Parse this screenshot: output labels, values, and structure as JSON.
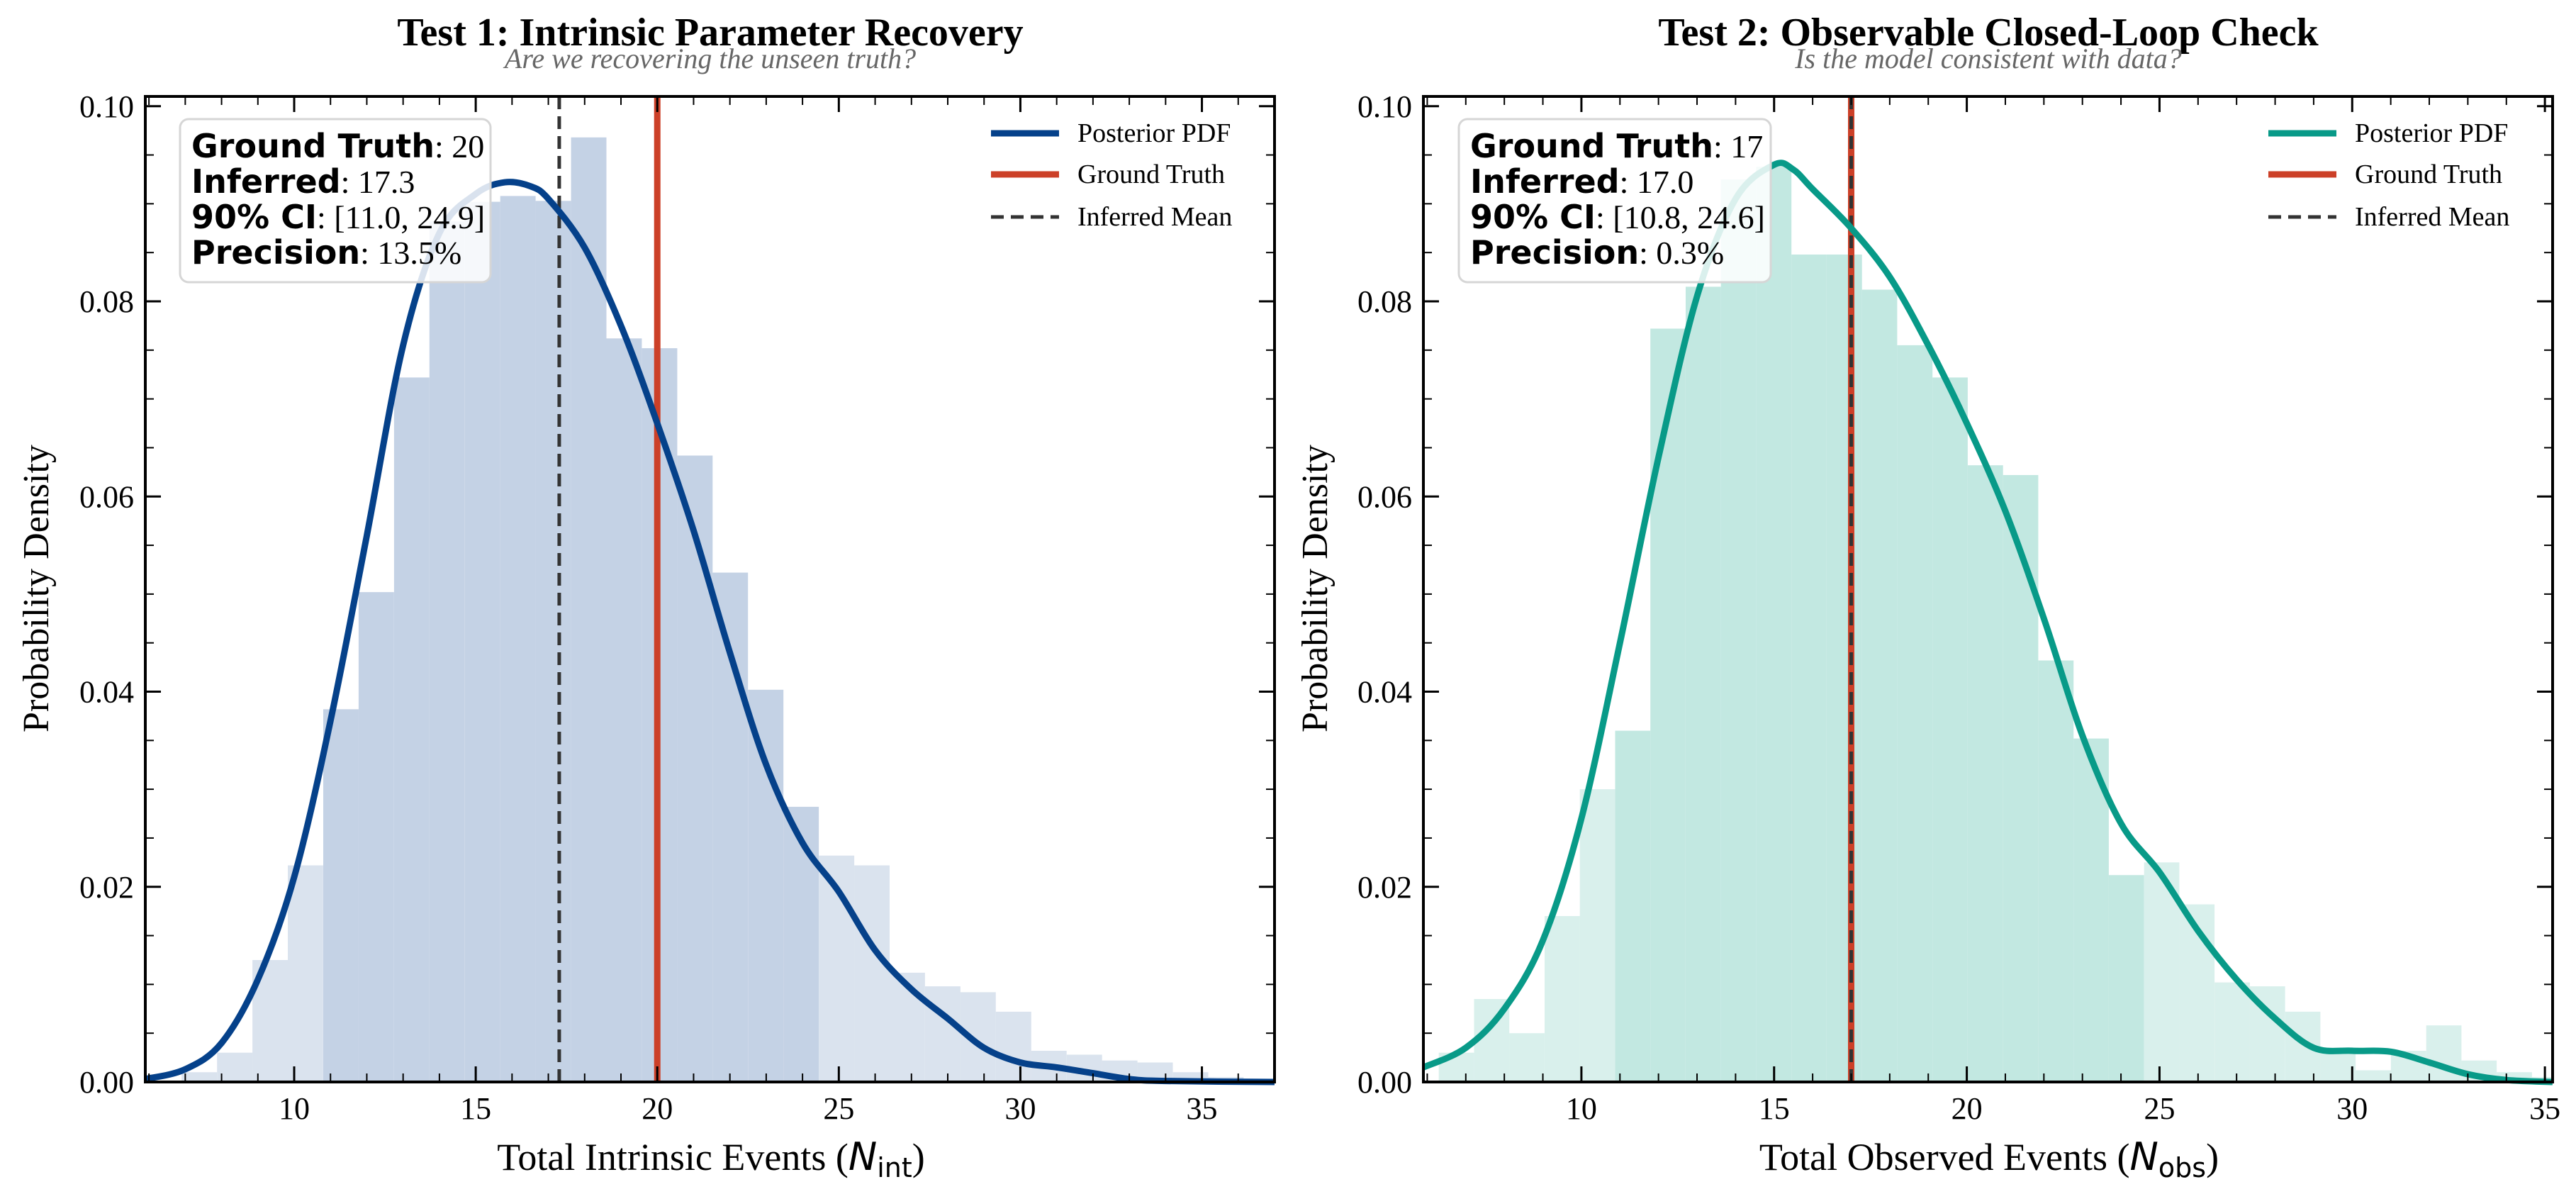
{
  "chart_data": [
    {
      "type": "histogram",
      "title": "Test 1: Intrinsic Parameter Recovery",
      "subtitle": "Are we recovering the unseen truth?",
      "xlabel_main": "Total Intrinsic Events (",
      "xlabel_sym": "N",
      "xlabel_sub": "int",
      "xlabel_close": ")",
      "ylabel": "Probability Density",
      "xlim": [
        5.9,
        37
      ],
      "ylim": [
        0,
        0.101
      ],
      "xticks": [
        10,
        15,
        20,
        25,
        30,
        35
      ],
      "xtick_labels": [
        "10",
        "15",
        "20",
        "25",
        "30",
        "35"
      ],
      "yticks": [
        0,
        0.02,
        0.04,
        0.06,
        0.08,
        0.1
      ],
      "ytick_labels": [
        "0.00",
        "0.02",
        "0.04",
        "0.06",
        "0.08",
        "0.10"
      ],
      "colors": {
        "pdf": "#05418a",
        "hist": "#b5c7de",
        "truth": "#cc4028",
        "mean": "#333333"
      },
      "histogram": {
        "bin_start": 6.9,
        "bin_width": 0.975,
        "heights": [
          0.001,
          0.003,
          0.0125,
          0.0222,
          0.0382,
          0.0502,
          0.0722,
          0.0882,
          0.0902,
          0.0908,
          0.0903,
          0.0968,
          0.0762,
          0.0752,
          0.0642,
          0.0522,
          0.0402,
          0.0282,
          0.0232,
          0.0222,
          0.0112,
          0.0098,
          0.0092,
          0.0072,
          0.0032,
          0.0028,
          0.0022,
          0.002,
          0.001,
          0.0005
        ],
        "ci_range": [
          11.0,
          24.9
        ]
      },
      "pdf": {
        "x": [
          5.9,
          7,
          8,
          9,
          10,
          11,
          12,
          13,
          14,
          15,
          15.8,
          16.5,
          17,
          18,
          19,
          20,
          21,
          22,
          23,
          24,
          25,
          26,
          27,
          28,
          29,
          30,
          31,
          32,
          33,
          34,
          37
        ],
        "y": [
          0.0003,
          0.0013,
          0.004,
          0.0105,
          0.021,
          0.037,
          0.056,
          0.0755,
          0.087,
          0.091,
          0.0922,
          0.0918,
          0.0905,
          0.0855,
          0.0775,
          0.0675,
          0.0565,
          0.044,
          0.0325,
          0.0245,
          0.0195,
          0.0135,
          0.0095,
          0.0065,
          0.0035,
          0.002,
          0.0015,
          0.0009,
          0.0003,
          0.0001,
          0.0
        ]
      },
      "ground_truth": 20,
      "inferred_mean": 17.3,
      "info_box": [
        {
          "label": "Ground Truth",
          "value": ": 20"
        },
        {
          "label": "Inferred",
          "value": ": 17.3"
        },
        {
          "label": "90% CI",
          "value": ": [11.0, 24.9]"
        },
        {
          "label": "Precision",
          "value": ": 13.5%"
        }
      ],
      "legend": {
        "position": "top-right",
        "entries": [
          "Posterior PDF",
          "Ground Truth",
          "Inferred Mean"
        ]
      }
    },
    {
      "type": "histogram",
      "title": "Test 2: Observable Closed-Loop Check",
      "subtitle": "Is the model consistent with data?",
      "xlabel_main": "Total Observed Events (",
      "xlabel_sym": "N",
      "xlabel_sub": "obs",
      "xlabel_close": ")",
      "ylabel": "Probability Density",
      "xlim": [
        5.9,
        35.2
      ],
      "ylim": [
        0,
        0.101
      ],
      "xticks": [
        10,
        15,
        20,
        25,
        30,
        35
      ],
      "xtick_labels": [
        "10",
        "15",
        "20",
        "25",
        "30",
        "35"
      ],
      "yticks": [
        0,
        0.02,
        0.04,
        0.06,
        0.08,
        0.1
      ],
      "ytick_labels": [
        "0.00",
        "0.02",
        "0.04",
        "0.06",
        "0.08",
        "0.10"
      ],
      "colors": {
        "pdf": "#089a88",
        "hist": "#b3e2da",
        "truth": "#cc4028",
        "mean": "#333333"
      },
      "histogram": {
        "bin_start": 6.3,
        "bin_width": 0.915,
        "heights": [
          0.003,
          0.0085,
          0.005,
          0.017,
          0.03,
          0.036,
          0.0772,
          0.0815,
          0.0925,
          0.0938,
          0.0848,
          0.0848,
          0.0812,
          0.0755,
          0.0722,
          0.0632,
          0.0622,
          0.0432,
          0.0352,
          0.0212,
          0.0225,
          0.0182,
          0.0102,
          0.0098,
          0.0072,
          0.0032,
          0.0012,
          0.0032,
          0.0058,
          0.0022,
          0.001,
          0.0005
        ],
        "ci_range": [
          10.8,
          24.6
        ]
      },
      "pdf": {
        "x": [
          5.9,
          7,
          8,
          9,
          10,
          11,
          12,
          13,
          14,
          15,
          15.5,
          16,
          17,
          18,
          19,
          20,
          21,
          22,
          23,
          24,
          25,
          26,
          27,
          28,
          29,
          30,
          31,
          32,
          33,
          34,
          35.2
        ],
        "y": [
          0.0015,
          0.0035,
          0.0075,
          0.0145,
          0.027,
          0.045,
          0.064,
          0.0805,
          0.0905,
          0.094,
          0.0935,
          0.0915,
          0.0875,
          0.0825,
          0.0755,
          0.0675,
          0.0585,
          0.0475,
          0.0355,
          0.0265,
          0.0215,
          0.0155,
          0.0105,
          0.0065,
          0.0035,
          0.0032,
          0.0031,
          0.002,
          0.0008,
          0.0002,
          0.0
        ]
      },
      "ground_truth": 17,
      "inferred_mean": 17.0,
      "info_box": [
        {
          "label": "Ground Truth",
          "value": ": 17"
        },
        {
          "label": "Inferred",
          "value": ": 17.0"
        },
        {
          "label": "90% CI",
          "value": ": [10.8, 24.6]"
        },
        {
          "label": "Precision",
          "value": ": 0.3%"
        }
      ],
      "legend": {
        "position": "top-right",
        "entries": [
          "Posterior PDF",
          "Ground Truth",
          "Inferred Mean"
        ]
      }
    }
  ]
}
